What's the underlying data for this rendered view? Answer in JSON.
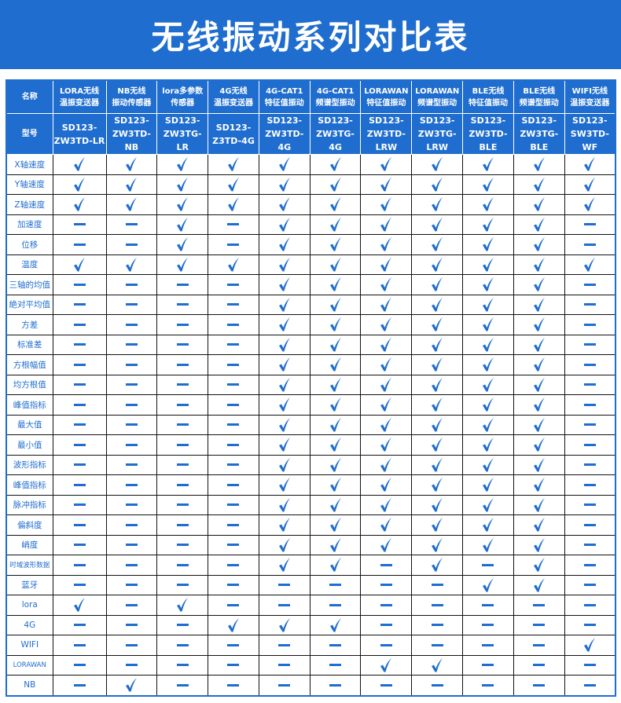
{
  "title": "无线振动系列对比表",
  "header": {
    "name_label": "名称",
    "model_label": "型号",
    "products": [
      {
        "name1": "LORA无线",
        "name2": "温振变送器",
        "model1": "SD123-",
        "model2": "ZW3TD-LR"
      },
      {
        "name1": "NB无线",
        "name2": "振动传感器",
        "model1": "SD123-",
        "model2": "ZW3TD-NB"
      },
      {
        "name1": "lora多参数",
        "name2": "传感器",
        "model1": "SD123-",
        "model2": "ZW3TG-LR"
      },
      {
        "name1": "4G无线",
        "name2": "温振变送器",
        "model1": "SD123-",
        "model2": "Z3TD-4G"
      },
      {
        "name1": "4G-CAT1",
        "name2": "特征值振动",
        "model1": "SD123-",
        "model2": "ZW3TD-4G"
      },
      {
        "name1": "4G-CAT1",
        "name2": "频谱型振动",
        "model1": "SD123-",
        "model2": "ZW3TG-4G"
      },
      {
        "name1": "LORAWAN",
        "name2": "特征值振动",
        "model1": "SD123-",
        "model2": "ZW3TD-LRW"
      },
      {
        "name1": "LORAWAN",
        "name2": "频谱型振动",
        "model1": "SD123-",
        "model2": "ZW3TG-LRW"
      },
      {
        "name1": "BLE无线",
        "name2": "特征值振动",
        "model1": "SD123-",
        "model2": "ZW3TD-BLE"
      },
      {
        "name1": "BLE无线",
        "name2": "频谱型振动",
        "model1": "SD123-",
        "model2": "ZW3TG-BLE"
      },
      {
        "name1": "WIFI无线",
        "name2": "温振变送器",
        "model1": "SD123-",
        "model2": "SW3TD-WF"
      }
    ]
  },
  "icons": {
    "yes": "check-icon",
    "no": "dash-icon"
  },
  "colors": {
    "accent": "#1f6dcf"
  },
  "rows": [
    {
      "label": "X轴速度",
      "values": "11111111111"
    },
    {
      "label": "Y轴速度",
      "values": "11111111111"
    },
    {
      "label": "Z轴速度",
      "values": "11111111111"
    },
    {
      "label": "加速度",
      "values": "00101111110"
    },
    {
      "label": "位移",
      "values": "00101111110"
    },
    {
      "label": "温度",
      "values": "11111111111"
    },
    {
      "label": "三轴的均值",
      "values": "00001111110"
    },
    {
      "label": "絶对平均值",
      "values": "00001111110"
    },
    {
      "label": "方差",
      "values": "00001111110"
    },
    {
      "label": "标准差",
      "values": "00001111110"
    },
    {
      "label": "方根幅值",
      "values": "00001111110"
    },
    {
      "label": "均方根值",
      "values": "00001111110"
    },
    {
      "label": "峰值指标",
      "values": "00001111110"
    },
    {
      "label": "最大值",
      "values": "00001111110"
    },
    {
      "label": "最小值",
      "values": "00001111110"
    },
    {
      "label": "波形指标",
      "values": "00001111110"
    },
    {
      "label": "峰值指标",
      "values": "00001111110"
    },
    {
      "label": "脉冲指标",
      "values": "00001111110"
    },
    {
      "label": "偏斜度",
      "values": "00001111110"
    },
    {
      "label": "峭度",
      "values": "00001111110"
    },
    {
      "label": "时域波形数据",
      "values": "00001101010"
    },
    {
      "label": "蓝牙",
      "values": "00000000110"
    },
    {
      "label": "lora",
      "values": "10100000000"
    },
    {
      "label": "4G",
      "values": "00011100000"
    },
    {
      "label": "WIFI",
      "values": "00000000001"
    },
    {
      "label": "LORAWAN",
      "values": "00000011000"
    },
    {
      "label": "NB",
      "values": "01000000000"
    }
  ]
}
